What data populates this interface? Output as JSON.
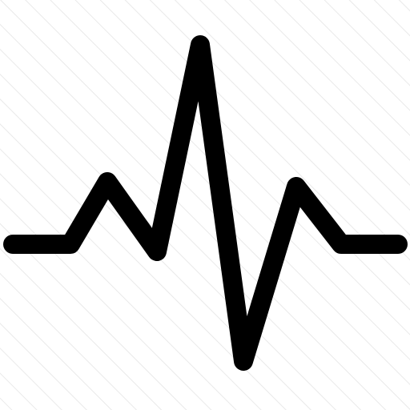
{
  "icon": {
    "name": "pulse-waveform-icon",
    "stroke_color": "#000000",
    "background_color": "#ffffff",
    "stripe_color": "#e9e9e9"
  }
}
